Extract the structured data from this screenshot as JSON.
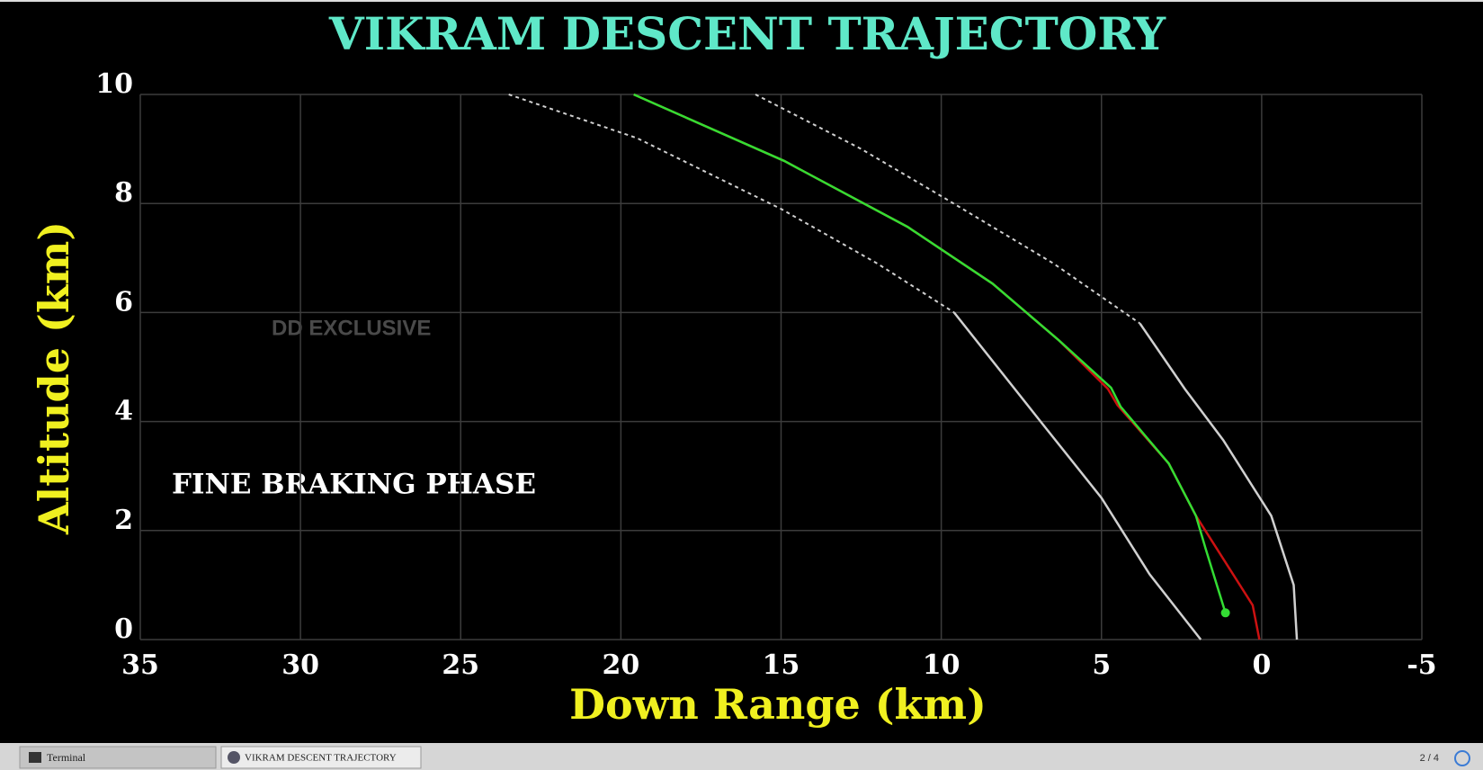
{
  "chart_data": {
    "type": "line",
    "title": "VIKRAM DESCENT TRAJECTORY",
    "xlabel": "Down Range (km)",
    "ylabel": "Altitude (km)",
    "xlim": [
      35,
      -5
    ],
    "ylim": [
      0,
      10
    ],
    "xticks": [
      35,
      30,
      25,
      20,
      15,
      10,
      5,
      0,
      -5
    ],
    "yticks": [
      0,
      2,
      4,
      6,
      8,
      10
    ],
    "grid": true,
    "annotations": [
      "FINE BRAKING PHASE"
    ],
    "series": [
      {
        "color": "#d0d0d0",
        "dash": true,
        "x": [
          23.5,
          19.5,
          15,
          12,
          9.6
        ],
        "values": [
          10,
          9.2,
          7.9,
          6.9,
          6
        ]
      },
      {
        "color": "#d0d0d0",
        "dash": false,
        "x": [
          9.6,
          6.9,
          5,
          3.5,
          1.9
        ],
        "values": [
          6,
          4,
          2.6,
          1.2,
          0
        ]
      },
      {
        "color": "#d0d0d0",
        "dash": true,
        "x": [
          15.8,
          12.5,
          9.9,
          6.5,
          3.8
        ],
        "values": [
          10,
          9,
          8.1,
          6.9,
          5.8
        ]
      },
      {
        "color": "#d0d0d0",
        "dash": false,
        "x": [
          3.8,
          2.4,
          1.2,
          -0.3,
          -1,
          -1.1
        ],
        "values": [
          5.8,
          4.6,
          3.66,
          2.27,
          1,
          0
        ]
      },
      {
        "color": "#cc1111",
        "dash": false,
        "end_marker": false,
        "x": [
          19.6,
          14.9,
          11.05,
          8.4,
          6.33,
          4.8,
          4.5,
          2.9,
          2.05,
          0.28,
          0.07
        ],
        "values": [
          10,
          8.78,
          7.57,
          6.53,
          5.49,
          4.6,
          4.3,
          3.23,
          2.27,
          0.63,
          0
        ]
      },
      {
        "color": "#33dd33",
        "dash": false,
        "end_marker": true,
        "x": [
          19.6,
          14.9,
          11.05,
          8.4,
          6.33,
          4.7,
          4.4,
          2.9,
          2.05,
          1.75,
          1.13
        ],
        "values": [
          10,
          8.78,
          7.57,
          6.53,
          5.49,
          4.62,
          4.27,
          3.23,
          2.27,
          1.67,
          0.49
        ]
      }
    ]
  },
  "watermark": "DD EXCLUSIVE",
  "taskbar": {
    "items": [
      "Terminal",
      "VIKRAM DESCENT TRAJECTORY"
    ],
    "workspace": "2 / 4"
  }
}
